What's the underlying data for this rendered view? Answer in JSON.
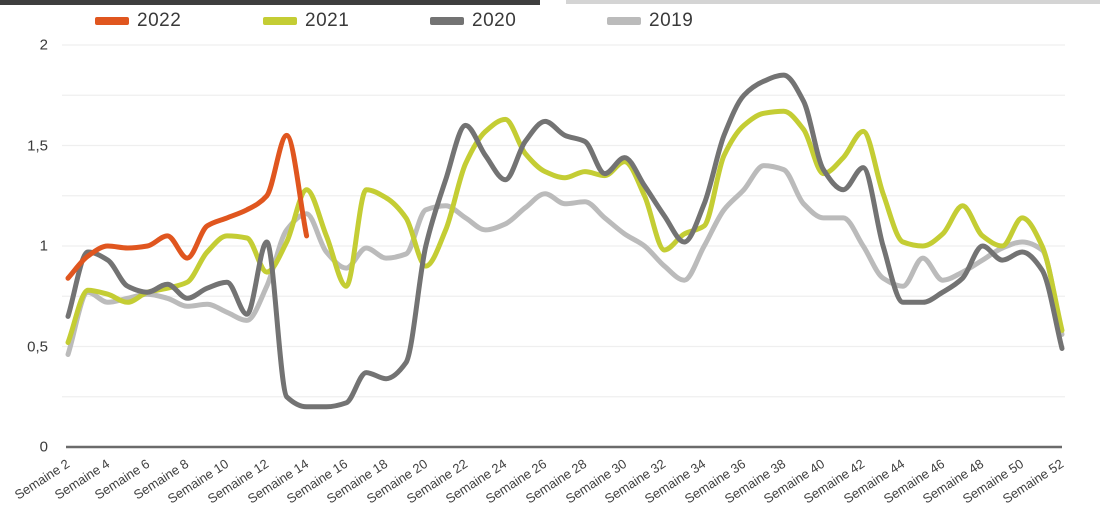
{
  "chart_data": {
    "type": "line",
    "title": "",
    "x_label_prefix": "Semaine",
    "categories": [
      "Semaine 2",
      "Semaine 4",
      "Semaine 6",
      "Semaine 8",
      "Semaine 10",
      "Semaine 12",
      "Semaine 14",
      "Semaine 16",
      "Semaine 18",
      "Semaine 20",
      "Semaine 22",
      "Semaine 24",
      "Semaine 26",
      "Semaine 28",
      "Semaine 30",
      "Semaine 32",
      "Semaine 34",
      "Semaine 36",
      "Semaine 38",
      "Semaine 40",
      "Semaine 42",
      "Semaine 44",
      "Semaine 46",
      "Semaine 48",
      "Semaine 50",
      "Semaine 52"
    ],
    "weeks": [
      2,
      3,
      4,
      5,
      6,
      7,
      8,
      9,
      10,
      11,
      12,
      13,
      14,
      15,
      16,
      17,
      18,
      19,
      20,
      21,
      22,
      23,
      24,
      25,
      26,
      27,
      28,
      29,
      30,
      31,
      32,
      33,
      34,
      35,
      36,
      37,
      38,
      39,
      40,
      41,
      42,
      43,
      44,
      45,
      46,
      47,
      48,
      49,
      50,
      51,
      52
    ],
    "ylim": [
      0,
      2
    ],
    "grid_step": 0.25,
    "grid_on": true,
    "legend_position": "top-left",
    "y_axis": {
      "ticks": [
        {
          "value": 2,
          "label": "2"
        },
        {
          "value": 1.5,
          "label": "1,5"
        },
        {
          "value": 1,
          "label": "1"
        },
        {
          "value": 0.5,
          "label": "0,5"
        },
        {
          "value": 0,
          "label": "0"
        }
      ]
    },
    "colors": {
      "axis": "#6b6b6b",
      "grid": "#efefef",
      "text": "#3a3a3a"
    },
    "series": [
      {
        "name": "2022",
        "color": "#e0561f",
        "values": [
          0.84,
          0.95,
          1.0,
          0.99,
          1.0,
          1.05,
          0.94,
          1.1,
          1.14,
          1.18,
          1.25,
          1.55,
          1.05,
          null,
          null,
          null,
          null,
          null,
          null,
          null,
          null,
          null,
          null,
          null,
          null,
          null,
          null,
          null,
          null,
          null,
          null,
          null,
          null,
          null,
          null,
          null,
          null,
          null,
          null,
          null,
          null,
          null,
          null,
          null,
          null,
          null,
          null,
          null,
          null,
          null,
          null
        ]
      },
      {
        "name": "2021",
        "color": "#c4cd34",
        "values": [
          0.52,
          0.78,
          0.76,
          0.72,
          0.77,
          0.79,
          0.82,
          0.97,
          1.05,
          1.04,
          0.87,
          1.02,
          1.28,
          1.05,
          0.8,
          1.28,
          1.24,
          1.14,
          0.9,
          1.08,
          1.41,
          1.57,
          1.63,
          1.46,
          1.37,
          1.34,
          1.37,
          1.35,
          1.42,
          1.25,
          0.98,
          1.06,
          1.1,
          1.45,
          1.6,
          1.66,
          1.67,
          1.58,
          1.36,
          1.44,
          1.57,
          1.26,
          1.02,
          1.0,
          1.06,
          1.2,
          1.05,
          1.0,
          1.14,
          1.0,
          0.58
        ]
      },
      {
        "name": "2020",
        "color": "#737373",
        "values": [
          0.65,
          0.97,
          0.93,
          0.8,
          0.77,
          0.81,
          0.74,
          0.79,
          0.82,
          0.66,
          1.02,
          0.25,
          0.2,
          0.2,
          0.22,
          0.37,
          0.34,
          0.42,
          1.0,
          1.33,
          1.6,
          1.45,
          1.33,
          1.52,
          1.62,
          1.55,
          1.52,
          1.36,
          1.44,
          1.3,
          1.15,
          1.02,
          1.21,
          1.55,
          1.75,
          1.82,
          1.85,
          1.72,
          1.38,
          1.28,
          1.39,
          1.0,
          0.72,
          0.72,
          0.77,
          0.84,
          1.0,
          0.93,
          0.97,
          0.88,
          0.49
        ]
      },
      {
        "name": "2019",
        "color": "#bbbbbb",
        "values": [
          0.46,
          0.77,
          0.72,
          0.74,
          0.76,
          0.74,
          0.7,
          0.71,
          0.67,
          0.63,
          0.8,
          1.08,
          1.16,
          0.97,
          0.89,
          0.99,
          0.94,
          0.96,
          1.18,
          1.2,
          1.14,
          1.08,
          1.11,
          1.19,
          1.26,
          1.21,
          1.22,
          1.14,
          1.06,
          1.0,
          0.9,
          0.83,
          1.0,
          1.18,
          1.28,
          1.4,
          1.38,
          1.21,
          1.14,
          1.14,
          1.0,
          0.84,
          0.8,
          0.94,
          0.83,
          0.87,
          0.93,
          0.99,
          1.02,
          0.98,
          0.56
        ]
      }
    ]
  }
}
